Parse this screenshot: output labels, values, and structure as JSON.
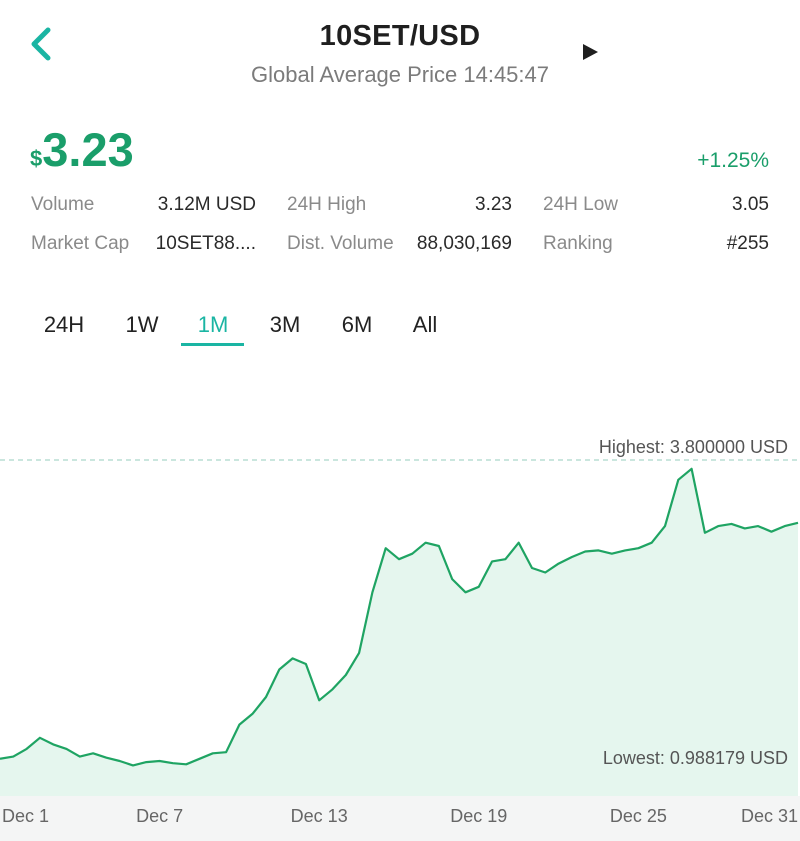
{
  "header": {
    "title": "10SET/USD",
    "subtitle": "Global Average Price 14:45:47",
    "back_icon": "chevron-left-icon",
    "play_icon": "play-icon"
  },
  "price": {
    "currency_symbol": "$",
    "value": "3.23",
    "change": "+1.25%"
  },
  "stats": {
    "row1": [
      {
        "label": "Volume",
        "value": "3.12M USD"
      },
      {
        "label": "24H High",
        "value": "3.23"
      },
      {
        "label": "24H Low",
        "value": "3.05"
      }
    ],
    "row2": [
      {
        "label": "Market Cap",
        "value": "10SET88...."
      },
      {
        "label": "Dist. Volume",
        "value": "88,030,169"
      },
      {
        "label": "Ranking",
        "value": "#255"
      }
    ]
  },
  "tabs": {
    "items": [
      "24H",
      "1W",
      "1M",
      "3M",
      "6M",
      "All"
    ],
    "active": "1M"
  },
  "colors": {
    "accent": "#1ab5a3",
    "positive": "#1a9e6a",
    "line": "#1fa463",
    "fill": "#e5f6ee"
  },
  "chart_data": {
    "type": "area",
    "highest_label": "Highest: 3.800000 USD",
    "lowest_label": "Lowest: 0.988179 USD",
    "x_ticks": [
      "Dec 1",
      "Dec 7",
      "Dec 13",
      "Dec 19",
      "Dec 25",
      "Dec 31"
    ],
    "x_range": [
      1,
      31
    ],
    "y_range": [
      0.988179,
      3.8
    ],
    "points": [
      [
        1,
        1.09
      ],
      [
        1.5,
        1.11
      ],
      [
        2,
        1.18
      ],
      [
        2.5,
        1.28
      ],
      [
        3,
        1.22
      ],
      [
        3.5,
        1.18
      ],
      [
        4,
        1.11
      ],
      [
        4.5,
        1.14
      ],
      [
        5,
        1.1
      ],
      [
        5.5,
        1.07
      ],
      [
        6,
        1.03
      ],
      [
        6.5,
        1.06
      ],
      [
        7,
        1.07
      ],
      [
        7.5,
        1.05
      ],
      [
        8,
        1.04
      ],
      [
        8.5,
        1.09
      ],
      [
        9,
        1.14
      ],
      [
        9.5,
        1.15
      ],
      [
        10,
        1.4
      ],
      [
        10.5,
        1.5
      ],
      [
        11,
        1.65
      ],
      [
        11.5,
        1.9
      ],
      [
        12,
        2.0
      ],
      [
        12.5,
        1.95
      ],
      [
        13,
        1.62
      ],
      [
        13.5,
        1.72
      ],
      [
        14,
        1.85
      ],
      [
        14.5,
        2.05
      ],
      [
        15,
        2.6
      ],
      [
        15.5,
        3.0
      ],
      [
        16,
        2.9
      ],
      [
        16.5,
        2.95
      ],
      [
        17,
        3.05
      ],
      [
        17.5,
        3.02
      ],
      [
        18,
        2.72
      ],
      [
        18.5,
        2.6
      ],
      [
        19,
        2.65
      ],
      [
        19.5,
        2.88
      ],
      [
        20,
        2.9
      ],
      [
        20.5,
        3.05
      ],
      [
        21,
        2.82
      ],
      [
        21.5,
        2.78
      ],
      [
        22,
        2.86
      ],
      [
        22.5,
        2.92
      ],
      [
        23,
        2.97
      ],
      [
        23.5,
        2.98
      ],
      [
        24,
        2.95
      ],
      [
        24.5,
        2.98
      ],
      [
        25,
        3.0
      ],
      [
        25.5,
        3.05
      ],
      [
        26,
        3.2
      ],
      [
        26.5,
        3.62
      ],
      [
        27,
        3.72
      ],
      [
        27.5,
        3.14
      ],
      [
        28,
        3.2
      ],
      [
        28.5,
        3.22
      ],
      [
        29,
        3.18
      ],
      [
        29.5,
        3.2
      ],
      [
        30,
        3.15
      ],
      [
        30.5,
        3.2
      ],
      [
        31,
        3.23
      ]
    ]
  }
}
